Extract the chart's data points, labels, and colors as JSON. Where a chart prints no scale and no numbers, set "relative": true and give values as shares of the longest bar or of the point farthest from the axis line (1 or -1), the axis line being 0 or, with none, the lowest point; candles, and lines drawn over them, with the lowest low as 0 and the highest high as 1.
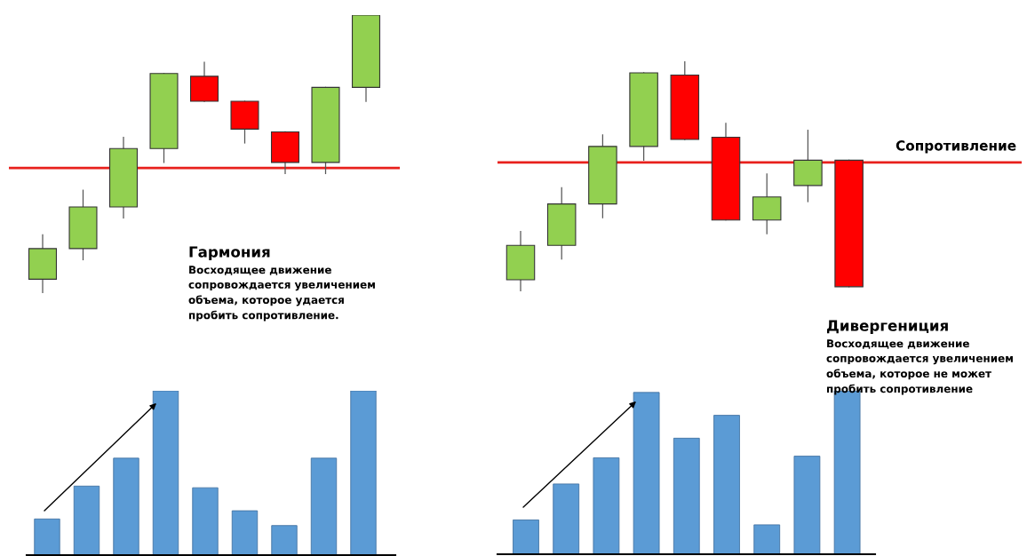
{
  "chart_data": [
    {
      "type": "candlestick",
      "relative": true,
      "categories": [
        null,
        null,
        null,
        null,
        null,
        null,
        null,
        null,
        null
      ],
      "ohlc": [
        [
          0.05,
          0.21,
          0,
          0.16
        ],
        [
          0.16,
          0.37,
          0.12,
          0.31
        ],
        [
          0.31,
          0.56,
          0.27,
          0.52
        ],
        [
          0.52,
          0.79,
          0.47,
          0.79
        ],
        [
          0.78,
          0.83,
          0.69,
          0.69
        ],
        [
          0.69,
          0.69,
          0.54,
          0.59
        ],
        [
          0.58,
          0.58,
          0.43,
          0.47
        ],
        [
          0.47,
          0.74,
          0.43,
          0.74
        ],
        [
          0.74,
          1,
          0.69,
          1
        ]
      ],
      "colors": [
        "#92d050",
        "#92d050",
        "#92d050",
        "#92d050",
        "#ff0000",
        "#ff0000",
        "#ff0000",
        "#92d050",
        "#92d050"
      ],
      "ref_lines": [
        {
          "axis": "y",
          "value": 0.45,
          "color": "#e8201c"
        }
      ],
      "annotations": [
        "Гармония",
        "Восходящее движение\nсопровождается увеличением\nобъема, которое удается\nпробить сопротивление."
      ],
      "tick_labels": false
    },
    {
      "type": "candlestick",
      "relative": true,
      "categories": [
        null,
        null,
        null,
        null,
        null,
        null,
        null,
        null,
        null
      ],
      "ohlc": [
        [
          0.05,
          0.26,
          0,
          0.2
        ],
        [
          0.2,
          0.45,
          0.14,
          0.38
        ],
        [
          0.38,
          0.68,
          0.32,
          0.63
        ],
        [
          0.63,
          0.95,
          0.57,
          0.95
        ],
        [
          0.94,
          1,
          0.66,
          0.66
        ],
        [
          0.67,
          0.73,
          0.31,
          0.31
        ],
        [
          0.31,
          0.51,
          0.25,
          0.41
        ],
        [
          0.46,
          0.7,
          0.39,
          0.57
        ],
        [
          0.57,
          0.57,
          0.02,
          0.02
        ]
      ],
      "colors": [
        "#92d050",
        "#92d050",
        "#92d050",
        "#92d050",
        "#ff0000",
        "#ff0000",
        "#92d050",
        "#92d050",
        "#ff0000"
      ],
      "ref_lines": [
        {
          "axis": "y",
          "value": 0.56,
          "label": "Сопротивление",
          "color": "#e8201c"
        }
      ],
      "annotations": [
        "Дивергениция",
        "Восходящее движение\nсопровождается увеличением\nобъема, которое не может\nпробить сопротивление"
      ],
      "tick_labels": false
    },
    {
      "type": "bar",
      "relative": true,
      "categories": [
        null,
        null,
        null,
        null,
        null,
        null,
        null,
        null,
        null
      ],
      "values": [
        0.22,
        0.42,
        0.59,
        1,
        0.41,
        0.27,
        0.18,
        0.59,
        1
      ],
      "color": "#5b9bd5",
      "tick_labels": false
    },
    {
      "type": "bar",
      "relative": true,
      "categories": [
        null,
        null,
        null,
        null,
        null,
        null,
        null,
        null,
        null
      ],
      "values": [
        0.21,
        0.43,
        0.59,
        0.99,
        0.71,
        0.85,
        0.18,
        0.6,
        1
      ],
      "color": "#5b9bd5",
      "tick_labels": false
    }
  ]
}
